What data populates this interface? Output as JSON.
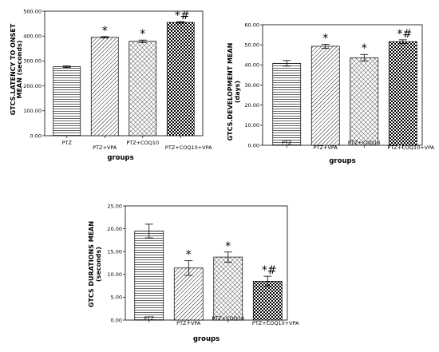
{
  "chart_data": [
    {
      "type": "bar",
      "categories": [
        "PTZ",
        "PTZ+VPA",
        "PTZ+COQ10",
        "PTZ+COQ10+VPA"
      ],
      "values": [
        277,
        395,
        379,
        455
      ],
      "errors": [
        3,
        3,
        5,
        3
      ],
      "annotations": [
        "",
        "*",
        "*",
        "*#"
      ],
      "ylabel": [
        "GTCS.LATENCY TO ONSET",
        "MEAN (seconds)"
      ],
      "xlabel": "groups",
      "ylim": [
        0,
        500
      ],
      "yticks": [
        "0.00",
        "100.00",
        "200.00",
        "300.00",
        "400.00",
        "500.00"
      ],
      "patterns": [
        "hlines",
        "diag",
        "cross",
        "check"
      ]
    },
    {
      "type": "bar",
      "categories": [
        "PTZ",
        "PTZ+VPA",
        "PTZ+COQ10",
        "PTZ+COQ10+VPA"
      ],
      "values": [
        40.8,
        49.3,
        43.6,
        51.6
      ],
      "errors": [
        1.4,
        1.0,
        1.6,
        0.9
      ],
      "annotations": [
        "",
        "*",
        "*",
        "*#"
      ],
      "ylabel": [
        "GTCS.DEVELOPMENT MEAN",
        "(days)"
      ],
      "xlabel": "groups",
      "ylim": [
        0,
        60
      ],
      "yticks": [
        "0.00",
        "10.00",
        "20.00",
        "30.00",
        "40.00",
        "50.00",
        "60.00"
      ],
      "patterns": [
        "hlines",
        "diag",
        "cross",
        "check"
      ]
    },
    {
      "type": "bar",
      "categories": [
        "PTZ",
        "PTZ+VPA",
        "PTZ+COQ10",
        "PTZ+COQ10+VPA"
      ],
      "values": [
        19.5,
        11.4,
        13.8,
        8.5
      ],
      "errors": [
        1.5,
        1.6,
        1.1,
        1.1
      ],
      "annotations": [
        "",
        "*",
        "*",
        "*#"
      ],
      "ylabel": [
        "GTCS DURATIONS MEAN",
        "(seconds)"
      ],
      "xlabel": "groups",
      "ylim": [
        0,
        25
      ],
      "yticks": [
        "0.00",
        "5.00",
        "10.00",
        "15.00",
        "20.00",
        "25.00"
      ],
      "patterns": [
        "hlines",
        "diag",
        "cross",
        "check"
      ]
    }
  ]
}
